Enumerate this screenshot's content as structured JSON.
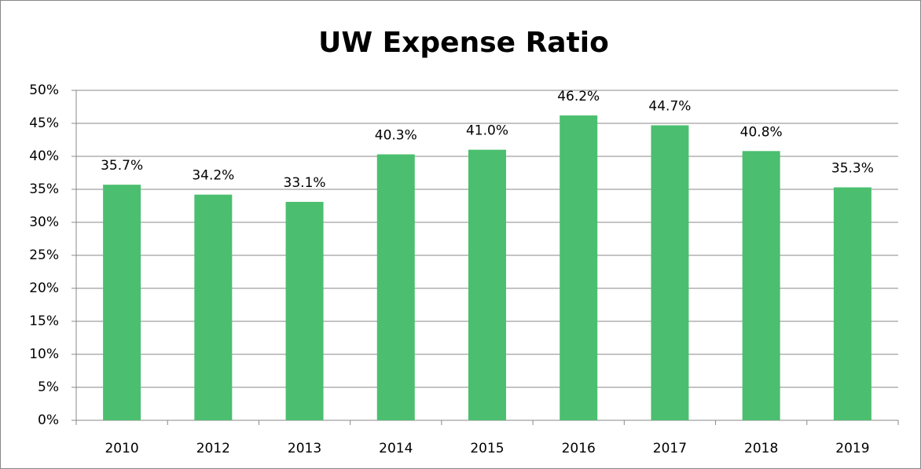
{
  "chart_data": {
    "type": "bar",
    "title": "UW Expense Ratio",
    "categories": [
      "2010",
      "2012",
      "2013",
      "2014",
      "2015",
      "2016",
      "2017",
      "2018",
      "2019"
    ],
    "values": [
      35.7,
      34.2,
      33.1,
      40.3,
      41.0,
      46.2,
      44.7,
      40.8,
      35.3
    ],
    "value_labels": [
      "35.7%",
      "34.2%",
      "33.1%",
      "40.3%",
      "41.0%",
      "46.2%",
      "44.7%",
      "40.8%",
      "35.3%"
    ],
    "color": "#4bbf6f",
    "ylim": [
      0,
      50
    ],
    "yticks": [
      {
        "value": 0,
        "label": "0%"
      },
      {
        "value": 5,
        "label": "5%"
      },
      {
        "value": 10,
        "label": "10%"
      },
      {
        "value": 15,
        "label": "15%"
      },
      {
        "value": 20,
        "label": "20%"
      },
      {
        "value": 25,
        "label": "25%"
      },
      {
        "value": 30,
        "label": "30%"
      },
      {
        "value": 35,
        "label": "35%"
      },
      {
        "value": 40,
        "label": "40%"
      },
      {
        "value": 45,
        "label": "45%"
      },
      {
        "value": 50,
        "label": "50%"
      }
    ],
    "grid": true
  }
}
